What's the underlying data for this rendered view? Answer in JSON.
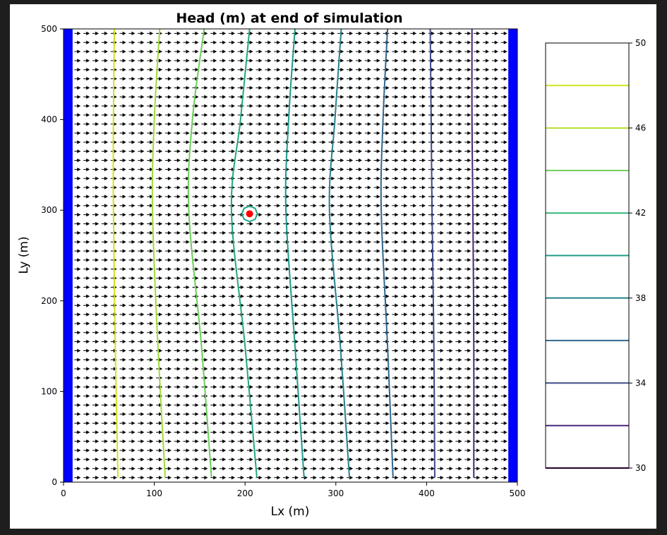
{
  "chart_data": {
    "type": "contour",
    "title": "Head (m) at end of simulation",
    "xlabel": "Lx (m)",
    "ylabel": "Ly (m)",
    "xlim": [
      0,
      500
    ],
    "ylim": [
      0,
      500
    ],
    "xticks": [
      0,
      100,
      200,
      300,
      400,
      500
    ],
    "yticks": [
      0,
      100,
      200,
      300,
      400,
      500
    ],
    "grid": false,
    "constant_head_boundaries": [
      {
        "side": "left",
        "x_range": [
          0,
          10
        ],
        "color": "#0000ff"
      },
      {
        "side": "right",
        "x_range": [
          490,
          500
        ],
        "color": "#0000ff"
      }
    ],
    "well": {
      "x": 205,
      "y": 296,
      "color": "#ff0000"
    },
    "contours": [
      {
        "level": 48,
        "x": [
          56,
          55,
          55,
          57,
          60
        ],
        "color": "#d2e21b"
      },
      {
        "level": 46,
        "x": [
          106,
          100,
          98,
          104,
          112
        ],
        "color": "#a0da39"
      },
      {
        "level": 44,
        "x": [
          155,
          142,
          138,
          152,
          163
        ],
        "color": "#6ccd5a"
      },
      {
        "level": 42,
        "x": [
          205,
          195,
          185,
          200,
          213
        ],
        "color": "#22a884"
      },
      {
        "level": 40,
        "x": [
          255,
          248,
          245,
          255,
          265
        ],
        "color": "#1f9a8a"
      },
      {
        "level": 38,
        "x": [
          306,
          299,
          293,
          305,
          315
        ],
        "color": "#26828e"
      },
      {
        "level": 36,
        "x": [
          357,
          352,
          350,
          357,
          363
        ],
        "color": "#31688e"
      },
      {
        "level": 34,
        "x": [
          404,
          405,
          406,
          408,
          409
        ],
        "color": "#3e4a89"
      },
      {
        "level": 32,
        "x": [
          450,
          450,
          451,
          452,
          452
        ],
        "color": "#482878"
      }
    ],
    "contour_y": [
      500,
      400,
      300,
      150,
      5
    ],
    "colorbar": {
      "levels": [
        30,
        32,
        34,
        36,
        38,
        40,
        42,
        44,
        46,
        48,
        50
      ],
      "colors": [
        "#440154",
        "#482878",
        "#3e4a89",
        "#31688e",
        "#26828e",
        "#1f9e89",
        "#35b779",
        "#6ece58",
        "#b5de2b",
        "#d2e21b",
        "#fde725"
      ],
      "tick_labels": [
        "30",
        "34",
        "38",
        "42",
        "46",
        "50"
      ]
    },
    "quiver": {
      "direction": "+x",
      "color": "#000000"
    }
  }
}
